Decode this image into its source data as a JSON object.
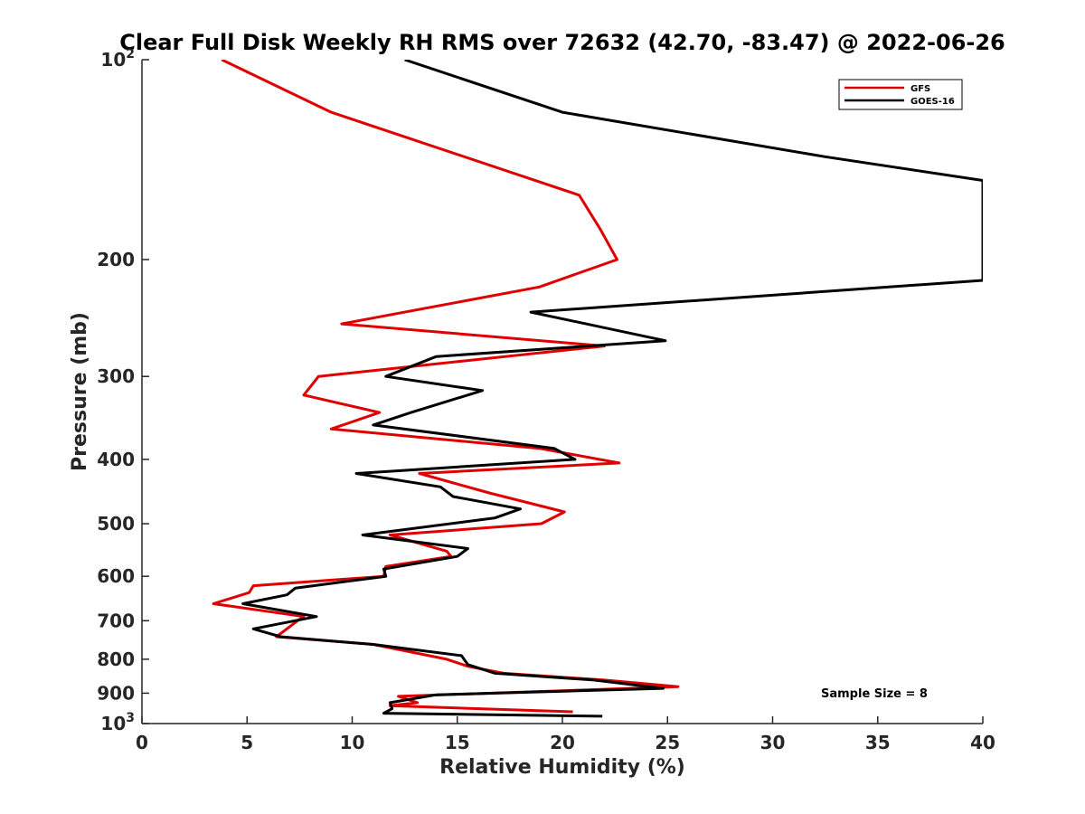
{
  "chart_data": {
    "type": "line",
    "title": "Clear Full Disk Weekly RH RMS over 72632 (42.70, -83.47) @ 2022-06-26",
    "xlabel": "Relative Humidity (%)",
    "ylabel": "Pressure (mb)",
    "xlim": [
      0,
      40
    ],
    "ylim": [
      100,
      1000
    ],
    "y_scale": "log",
    "y_reversed": true,
    "grid": false,
    "legend_position": "top-right",
    "x_ticks": [
      {
        "value": 0,
        "label": "0"
      },
      {
        "value": 5,
        "label": "5"
      },
      {
        "value": 10,
        "label": "10"
      },
      {
        "value": 15,
        "label": "15"
      },
      {
        "value": 20,
        "label": "20"
      },
      {
        "value": 25,
        "label": "25"
      },
      {
        "value": 30,
        "label": "30"
      },
      {
        "value": 35,
        "label": "35"
      },
      {
        "value": 40,
        "label": "40"
      }
    ],
    "y_ticks": [
      {
        "value": 100,
        "label": "10",
        "sup": "2"
      },
      {
        "value": 200,
        "label": "200",
        "sup": ""
      },
      {
        "value": 300,
        "label": "300",
        "sup": ""
      },
      {
        "value": 400,
        "label": "400",
        "sup": ""
      },
      {
        "value": 500,
        "label": "500",
        "sup": ""
      },
      {
        "value": 600,
        "label": "600",
        "sup": ""
      },
      {
        "value": 700,
        "label": "700",
        "sup": ""
      },
      {
        "value": 800,
        "label": "800",
        "sup": ""
      },
      {
        "value": 900,
        "label": "900",
        "sup": ""
      },
      {
        "value": 1000,
        "label": "10",
        "sup": "3"
      }
    ],
    "series": [
      {
        "name": "GFS",
        "color": "#e00000",
        "points": [
          [
            3.8,
            100
          ],
          [
            9.0,
            120
          ],
          [
            20.8,
            160
          ],
          [
            21.8,
            180
          ],
          [
            22.6,
            200
          ],
          [
            18.9,
            220
          ],
          [
            9.5,
            250
          ],
          [
            22.0,
            270
          ],
          [
            8.4,
            300
          ],
          [
            7.7,
            320
          ],
          [
            11.3,
            340
          ],
          [
            9.0,
            360
          ],
          [
            18.9,
            385
          ],
          [
            22.7,
            405
          ],
          [
            13.2,
            420
          ],
          [
            16.6,
            450
          ],
          [
            20.1,
            480
          ],
          [
            19.0,
            500
          ],
          [
            11.8,
            520
          ],
          [
            14.5,
            550
          ],
          [
            14.7,
            560
          ],
          [
            11.6,
            580
          ],
          [
            11.5,
            600
          ],
          [
            5.3,
            620
          ],
          [
            5.1,
            635
          ],
          [
            3.4,
            660
          ],
          [
            7.7,
            690
          ],
          [
            7.4,
            700
          ],
          [
            6.4,
            740
          ],
          [
            11.0,
            760
          ],
          [
            14.5,
            800
          ],
          [
            15.5,
            820
          ],
          [
            17.2,
            840
          ],
          [
            22.0,
            860
          ],
          [
            25.5,
            880
          ],
          [
            12.2,
            910
          ],
          [
            13.1,
            930
          ],
          [
            11.8,
            940
          ],
          [
            20.5,
            960
          ]
        ]
      },
      {
        "name": "GOES-16",
        "color": "#000000",
        "points": [
          [
            12.5,
            100
          ],
          [
            20.0,
            120
          ],
          [
            32.5,
            140
          ],
          [
            40.0,
            152
          ],
          [
            40.0,
            215
          ],
          [
            18.5,
            240
          ],
          [
            24.9,
            265
          ],
          [
            14.0,
            280
          ],
          [
            11.6,
            300
          ],
          [
            16.2,
            315
          ],
          [
            12.8,
            340
          ],
          [
            11.0,
            355
          ],
          [
            19.6,
            385
          ],
          [
            20.6,
            400
          ],
          [
            10.2,
            420
          ],
          [
            14.2,
            440
          ],
          [
            14.8,
            455
          ],
          [
            18.0,
            475
          ],
          [
            16.8,
            490
          ],
          [
            10.5,
            520
          ],
          [
            15.5,
            545
          ],
          [
            15.0,
            560
          ],
          [
            11.5,
            585
          ],
          [
            11.6,
            600
          ],
          [
            7.3,
            625
          ],
          [
            6.9,
            640
          ],
          [
            4.8,
            660
          ],
          [
            8.3,
            690
          ],
          [
            5.3,
            720
          ],
          [
            6.6,
            740
          ],
          [
            11.0,
            760
          ],
          [
            15.2,
            790
          ],
          [
            15.5,
            815
          ],
          [
            16.8,
            840
          ],
          [
            21.5,
            860
          ],
          [
            24.8,
            885
          ],
          [
            14.0,
            905
          ],
          [
            11.8,
            930
          ],
          [
            11.9,
            950
          ],
          [
            11.5,
            965
          ],
          [
            21.9,
            975
          ]
        ]
      }
    ],
    "legend": [
      "GFS",
      "GOES-16"
    ],
    "annotation": "Sample Size = 8"
  }
}
